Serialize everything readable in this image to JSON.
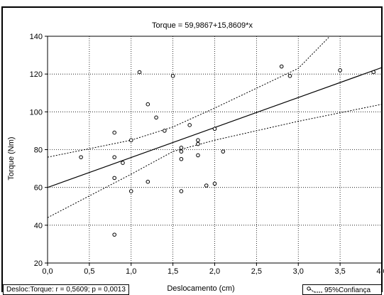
{
  "chart_data": {
    "type": "scatter",
    "title": "Torque = 59,9867+15,8609*x",
    "xlabel": "Deslocamento (cm)",
    "ylabel": "Torque (Nm)",
    "xlim": [
      0,
      4
    ],
    "ylim": [
      20,
      140
    ],
    "x_ticks": [
      "0,0",
      "0,5",
      "1,0",
      "1,5",
      "2,0",
      "2,5",
      "3,0",
      "3,5",
      "4,0"
    ],
    "y_ticks": [
      "20",
      "40",
      "60",
      "80",
      "100",
      "120",
      "140"
    ],
    "grid": true,
    "regression": {
      "intercept": 59.9867,
      "slope": 15.8609
    },
    "confidence_band": {
      "lower": [
        [
          0,
          44
        ],
        [
          1,
          67
        ],
        [
          1.5,
          79
        ],
        [
          2,
          85
        ],
        [
          3,
          95
        ],
        [
          4,
          104
        ]
      ],
      "upper": [
        [
          0,
          76
        ],
        [
          1,
          85
        ],
        [
          1.5,
          92
        ],
        [
          2,
          102
        ],
        [
          3,
          123
        ],
        [
          3.4,
          141
        ]
      ]
    },
    "points": [
      [
        0.4,
        76
      ],
      [
        0.8,
        89
      ],
      [
        0.8,
        76
      ],
      [
        0.8,
        65
      ],
      [
        0.8,
        35
      ],
      [
        0.9,
        73
      ],
      [
        1.0,
        85
      ],
      [
        1.0,
        58
      ],
      [
        1.1,
        121
      ],
      [
        1.2,
        104
      ],
      [
        1.2,
        63
      ],
      [
        1.3,
        97
      ],
      [
        1.4,
        90
      ],
      [
        1.5,
        119
      ],
      [
        1.6,
        81
      ],
      [
        1.6,
        79
      ],
      [
        1.6,
        75
      ],
      [
        1.6,
        58
      ],
      [
        1.7,
        93
      ],
      [
        1.8,
        85
      ],
      [
        1.8,
        83
      ],
      [
        1.8,
        77
      ],
      [
        1.9,
        61
      ],
      [
        2.0,
        91
      ],
      [
        2.0,
        62
      ],
      [
        2.1,
        79
      ],
      [
        2.8,
        124
      ],
      [
        2.9,
        119
      ],
      [
        3.5,
        122
      ],
      [
        3.9,
        121
      ]
    ]
  },
  "stats_text": "Desloc:Torque:  r = 0,5609; p = 0,0013",
  "legend_label": "95%Confiança"
}
